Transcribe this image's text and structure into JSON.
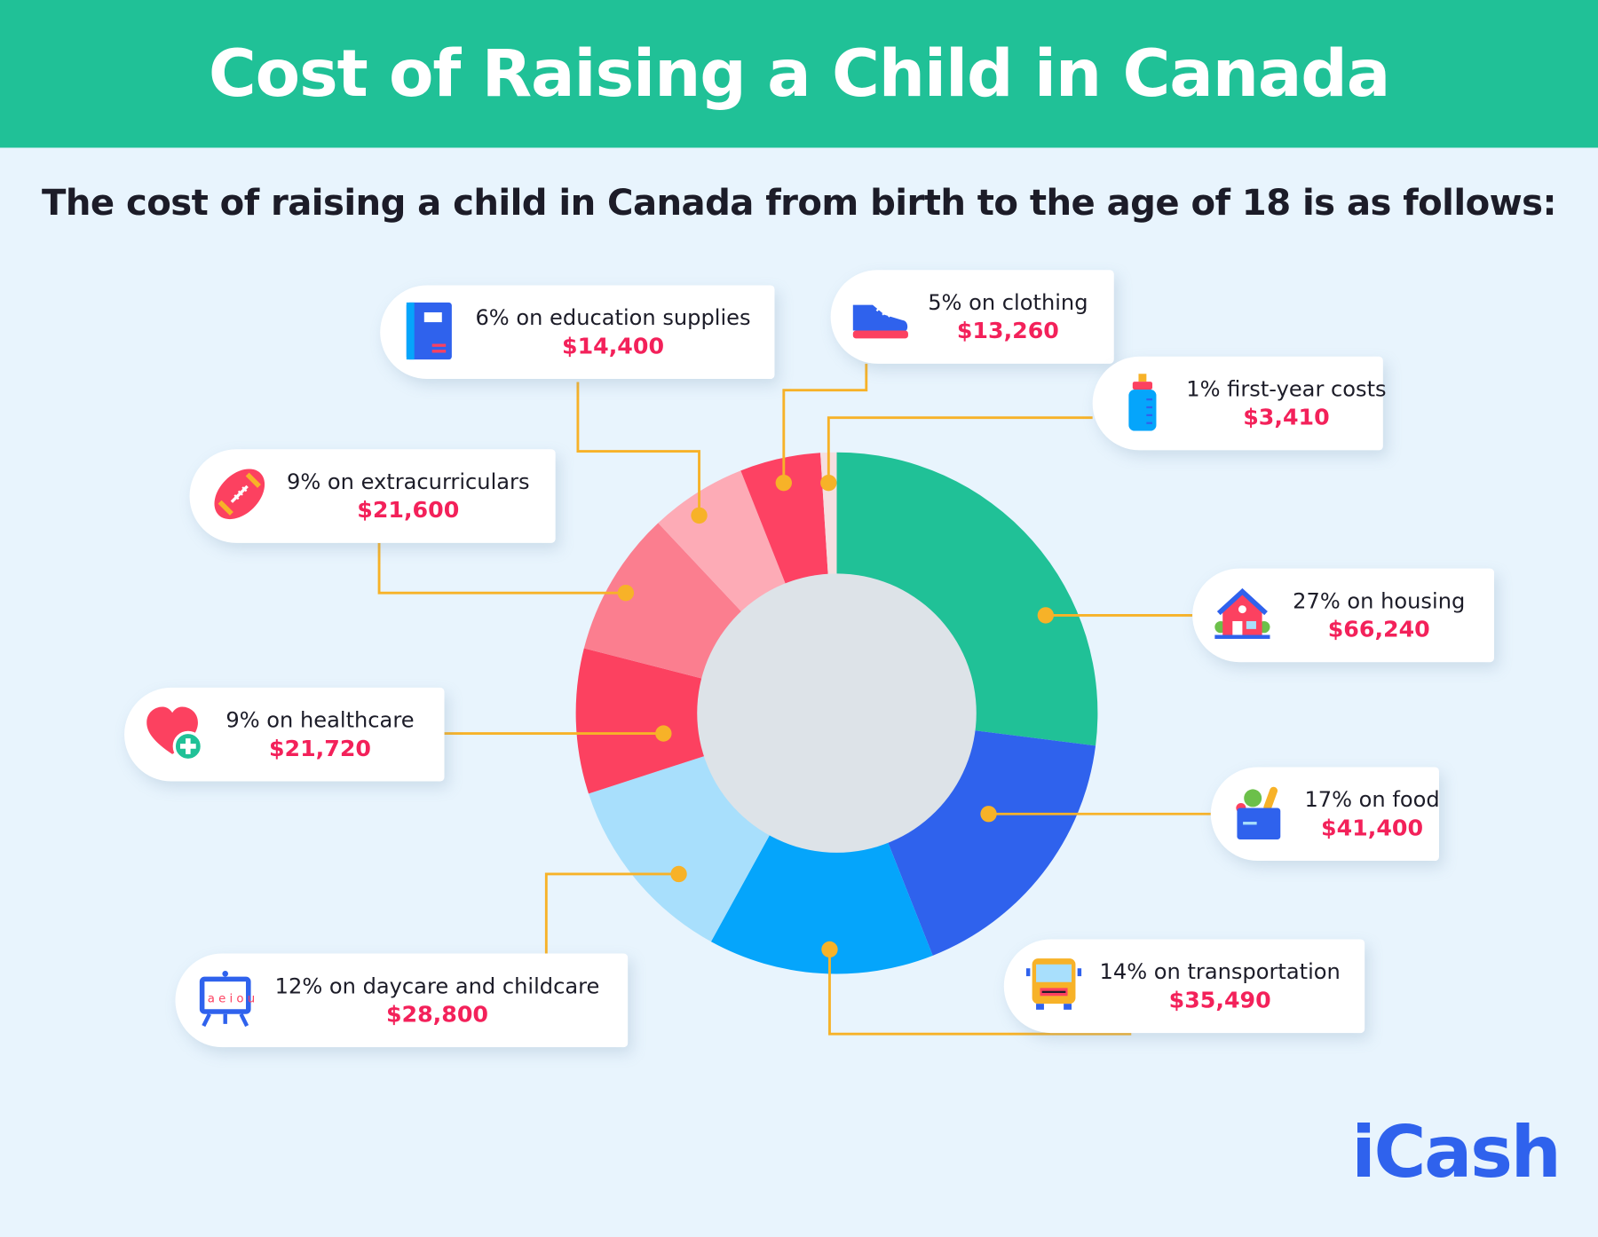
{
  "title": "Cost of Raising a Child in Canada",
  "subtitle": "The cost of raising a child in Canada from birth to the age of 18 is as follows:",
  "logo": "iCash",
  "colors": {
    "header": "#20c197",
    "background": "#e8f4fd",
    "connector": "#f7b228",
    "amount": "#f3215a",
    "logo": "#2f62ed",
    "donut_hole": "#dde3e8"
  },
  "chart_data": {
    "type": "pie",
    "donut": true,
    "start": "top",
    "direction": "clockwise",
    "slices": [
      {
        "key": "housing",
        "label": "27% on housing",
        "percent": 27,
        "amount": "$66,240",
        "color": "#20c197",
        "icon": "house-icon"
      },
      {
        "key": "food",
        "label": "17% on food",
        "percent": 17,
        "amount": "$41,400",
        "color": "#2f62ed",
        "icon": "grocery-bag-icon"
      },
      {
        "key": "transportation",
        "label": "14% on transportation",
        "percent": 14,
        "amount": "$35,490",
        "color": "#05a5fb",
        "icon": "bus-icon"
      },
      {
        "key": "daycare",
        "label": "12% on daycare and childcare",
        "percent": 12,
        "amount": "$28,800",
        "color": "#a8dffc",
        "icon": "easel-board-icon"
      },
      {
        "key": "healthcare",
        "label": "9% on healthcare",
        "percent": 9,
        "amount": "$21,720",
        "color": "#fc4160",
        "icon": "heart-plus-icon"
      },
      {
        "key": "extracurriculars",
        "label": "9% on extracurriculars",
        "percent": 9,
        "amount": "$21,600",
        "color": "#fb7e8f",
        "icon": "football-icon"
      },
      {
        "key": "education",
        "label": "6% on education supplies",
        "percent": 6,
        "amount": "$14,400",
        "color": "#fdabb6",
        "icon": "notebook-icon"
      },
      {
        "key": "clothing",
        "label": "5% on clothing",
        "percent": 5,
        "amount": "$13,260",
        "color": "#fd4263",
        "icon": "sneaker-icon"
      },
      {
        "key": "first_year",
        "label": "1% first-year costs",
        "percent": 1,
        "amount": "$3,410",
        "color": "#f5dfe0",
        "icon": "baby-bottle-icon"
      }
    ]
  }
}
